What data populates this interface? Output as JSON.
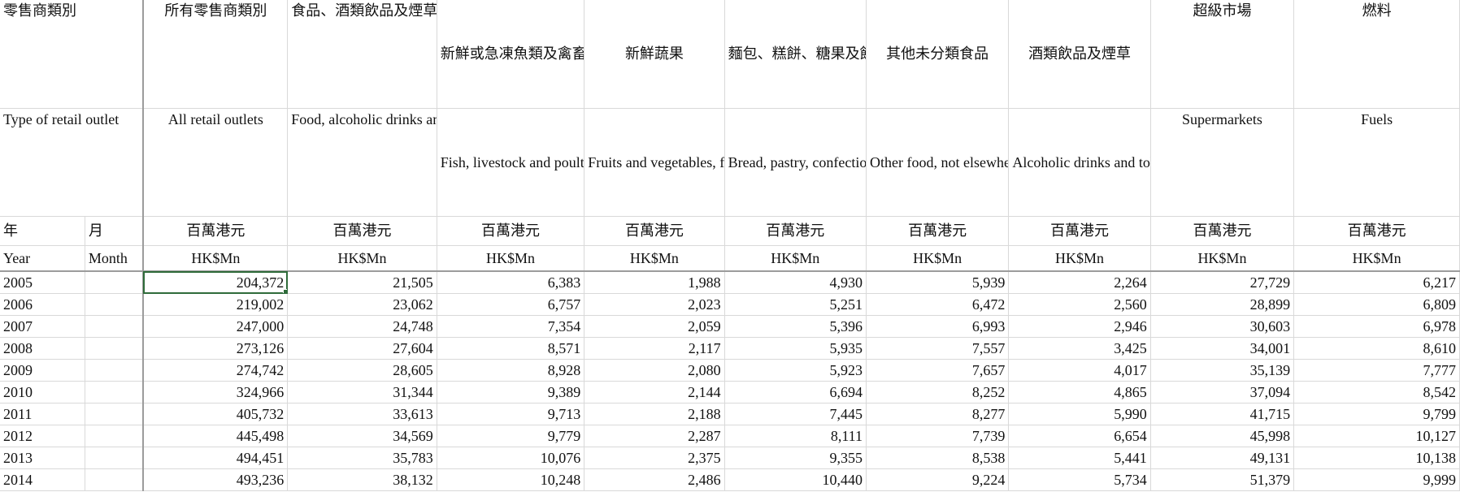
{
  "header": {
    "type_zh": "零售商類別",
    "type_en": "Type of retail outlet",
    "year_zh": "年",
    "month_zh": "月",
    "year_en": "Year",
    "month_en": "Month"
  },
  "columns": [
    {
      "zh": "所有零售商類別",
      "en": "All retail outlets",
      "unit_zh": "百萬港元",
      "unit_en": "HK$Mn"
    },
    {
      "zh": "食品、酒類飲品及煙草 (超級市場除外)",
      "en": "Food, alcoholic drinks and tobacco (other than supermarkets)",
      "unit_zh": "百萬港元",
      "unit_en": "HK$Mn"
    },
    {
      "zh": "新鮮或急凍魚類及禽畜肉類",
      "en": "Fish, livestock and poultry, fresh or frozen",
      "unit_zh": "百萬港元",
      "unit_en": "HK$Mn"
    },
    {
      "zh": "新鮮蔬果",
      "en": "Fruits and vegetables, fresh",
      "unit_zh": "百萬港元",
      "unit_en": "HK$Mn"
    },
    {
      "zh": "麵包、糕餅、糖果及餅乾",
      "en": "Bread, pastry, confectionery and biscuits",
      "unit_zh": "百萬港元",
      "unit_en": "HK$Mn"
    },
    {
      "zh": "其他未分類食品",
      "en": "Other food, not elsewhere classified",
      "unit_zh": "百萬港元",
      "unit_en": "HK$Mn"
    },
    {
      "zh": "酒類飲品及煙草",
      "en": "Alcoholic drinks and tobacco",
      "unit_zh": "百萬港元",
      "unit_en": "HK$Mn"
    },
    {
      "zh": "超級市場",
      "en": "Supermarkets",
      "unit_zh": "百萬港元",
      "unit_en": "HK$Mn"
    },
    {
      "zh": "燃料",
      "en": "Fuels",
      "unit_zh": "百萬港元",
      "unit_en": "HK$Mn"
    }
  ],
  "rows": [
    {
      "year": "2005",
      "month": "",
      "values": [
        "204,372",
        "21,505",
        "6,383",
        "1,988",
        "4,930",
        "5,939",
        "2,264",
        "27,729",
        "6,217"
      ]
    },
    {
      "year": "2006",
      "month": "",
      "values": [
        "219,002",
        "23,062",
        "6,757",
        "2,023",
        "5,251",
        "6,472",
        "2,560",
        "28,899",
        "6,809"
      ]
    },
    {
      "year": "2007",
      "month": "",
      "values": [
        "247,000",
        "24,748",
        "7,354",
        "2,059",
        "5,396",
        "6,993",
        "2,946",
        "30,603",
        "6,978"
      ]
    },
    {
      "year": "2008",
      "month": "",
      "values": [
        "273,126",
        "27,604",
        "8,571",
        "2,117",
        "5,935",
        "7,557",
        "3,425",
        "34,001",
        "8,610"
      ]
    },
    {
      "year": "2009",
      "month": "",
      "values": [
        "274,742",
        "28,605",
        "8,928",
        "2,080",
        "5,923",
        "7,657",
        "4,017",
        "35,139",
        "7,777"
      ]
    },
    {
      "year": "2010",
      "month": "",
      "values": [
        "324,966",
        "31,344",
        "9,389",
        "2,144",
        "6,694",
        "8,252",
        "4,865",
        "37,094",
        "8,542"
      ]
    },
    {
      "year": "2011",
      "month": "",
      "values": [
        "405,732",
        "33,613",
        "9,713",
        "2,188",
        "7,445",
        "8,277",
        "5,990",
        "41,715",
        "9,799"
      ]
    },
    {
      "year": "2012",
      "month": "",
      "values": [
        "445,498",
        "34,569",
        "9,779",
        "2,287",
        "8,111",
        "7,739",
        "6,654",
        "45,998",
        "10,127"
      ]
    },
    {
      "year": "2013",
      "month": "",
      "values": [
        "494,451",
        "35,783",
        "10,076",
        "2,375",
        "9,355",
        "8,538",
        "5,441",
        "49,131",
        "10,138"
      ]
    },
    {
      "year": "2014",
      "month": "",
      "values": [
        "493,236",
        "38,132",
        "10,248",
        "2,486",
        "10,440",
        "9,224",
        "5,734",
        "51,379",
        "9,999"
      ]
    }
  ],
  "selected_cell": "204,372",
  "colors": {
    "selection": "#2f6b3a",
    "gridline": "#d9d9d9"
  }
}
